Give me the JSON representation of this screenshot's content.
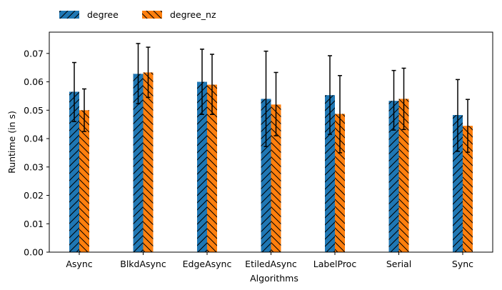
{
  "chart_data": {
    "type": "bar",
    "xlabel": "Algorithms",
    "ylabel": "Runtime (in s)",
    "ylim": [
      0,
      0.0775
    ],
    "yticks": [
      "0.00",
      "0.01",
      "0.02",
      "0.03",
      "0.04",
      "0.05",
      "0.06",
      "0.07"
    ],
    "categories": [
      "Async",
      "BlkdAsync",
      "EdgeAsync",
      "EtiledAsync",
      "LabelProc",
      "Serial",
      "Sync"
    ],
    "legend_position": "top-left, outside plot",
    "grid": false,
    "series": [
      {
        "name": "degree",
        "color": "#1f77b4",
        "hatch": "forward-diagonal",
        "values": [
          0.0565,
          0.0628,
          0.06,
          0.054,
          0.0553,
          0.0533,
          0.0483
        ],
        "err_low": [
          0.046,
          0.0523,
          0.0485,
          0.0372,
          0.0415,
          0.043,
          0.0355
        ],
        "err_high": [
          0.0668,
          0.0735,
          0.0715,
          0.0708,
          0.0692,
          0.064,
          0.0608
        ]
      },
      {
        "name": "degree_nz",
        "color": "#ff7f0e",
        "hatch": "back-diagonal",
        "values": [
          0.05,
          0.0633,
          0.059,
          0.052,
          0.0487,
          0.054,
          0.0445
        ],
        "err_low": [
          0.0425,
          0.0545,
          0.0485,
          0.041,
          0.035,
          0.0432,
          0.0352
        ],
        "err_high": [
          0.0575,
          0.0722,
          0.0697,
          0.0633,
          0.0622,
          0.0648,
          0.0538
        ]
      }
    ]
  }
}
